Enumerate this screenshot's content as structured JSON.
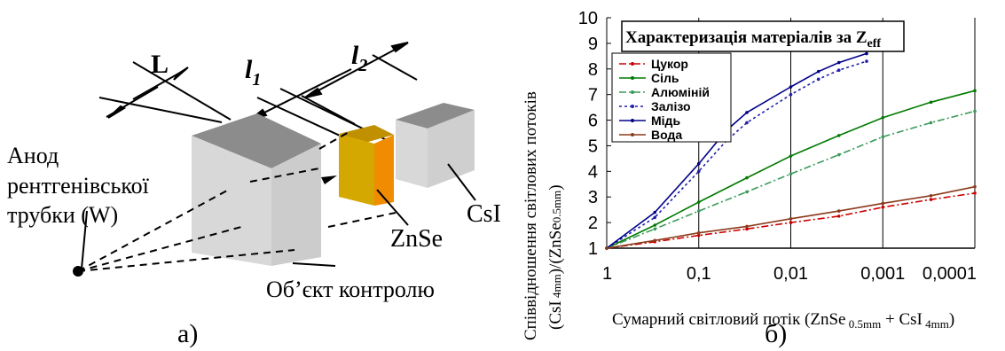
{
  "panel_a": {
    "label": "а)",
    "dim_L": "L",
    "dim_l1": "l",
    "dim_l1_sub": "1",
    "dim_l2": "l",
    "dim_l2_sub": "2",
    "anode_line1": "Анод",
    "anode_line2": "рентгенівської",
    "anode_line3": "трубки (W)",
    "object_label": "Об’єкт контролю",
    "znse_label": "ZnSe",
    "csi_label": "CsI",
    "colors": {
      "object_front": "#d8d8d8",
      "object_top": "#8c8c8c",
      "znse_front": "#d4a800",
      "znse_side": "#f08c00",
      "csi_front": "#d8d8d8",
      "csi_top": "#8c8c8c"
    }
  },
  "panel_b": {
    "label": "б)",
    "y_label_line1": "Співвідношення світлових потоків",
    "y_label_line2_a": "(CsI",
    "y_label_line2_sub1": " 4mm",
    "y_label_line2_b": ")/(ZnSe",
    "y_label_line2_sub2": "0.5mm",
    "y_label_line2_c": ")",
    "x_label_a": "Сумарний світловий потік (ZnSe",
    "x_label_sub1": " 0.5mm",
    "x_label_b": " + CsI",
    "x_label_sub2": " 4mm",
    "x_label_c": ")",
    "legend_title_a": "Характеризація  матеріалів за Z",
    "legend_title_sub": "eff"
  },
  "chart_data": {
    "type": "line",
    "title": "Характеризація  матеріалів за Zeff",
    "xlabel": "Сумарний світловий потік (ZnSe 0.5mm + CsI 4mm)",
    "ylabel": "Співвідношення світлових потоків (CsI 4mm)/(ZnSe0.5mm)",
    "x_scale": "log-reversed",
    "xlim": [
      1,
      0.0001
    ],
    "ylim": [
      1,
      10
    ],
    "x_ticks": [
      "1",
      "0,1",
      "0,01",
      "0,001",
      "0,0001"
    ],
    "y_ticks": [
      "1",
      "2",
      "3",
      "4",
      "5",
      "6",
      "7",
      "8",
      "9",
      "10"
    ],
    "legend_placement": "top-left",
    "grid": "vertical",
    "series": [
      {
        "name": "Цукор",
        "color": "#cc0000",
        "dash": "8,3,2,3",
        "x": [
          1,
          0.3,
          0.1,
          0.03,
          0.01,
          0.003,
          0.001,
          0.0003,
          0.0001
        ],
        "y": [
          1.0,
          1.25,
          1.5,
          1.75,
          2.0,
          2.25,
          2.6,
          2.9,
          3.15
        ]
      },
      {
        "name": "Сіль",
        "color": "#007a00",
        "dash": "",
        "x": [
          1,
          0.3,
          0.1,
          0.03,
          0.01,
          0.003,
          0.001,
          0.0003,
          0.0001
        ],
        "y": [
          1.0,
          1.9,
          2.8,
          3.75,
          4.6,
          5.4,
          6.1,
          6.7,
          7.15
        ]
      },
      {
        "name": "Алюміній",
        "color": "#3a9a5a",
        "dash": "8,3,2,3",
        "x": [
          1,
          0.3,
          0.1,
          0.03,
          0.01,
          0.003,
          0.001,
          0.0003,
          0.0001
        ],
        "y": [
          1.0,
          1.75,
          2.45,
          3.2,
          3.9,
          4.65,
          5.35,
          5.9,
          6.35
        ]
      },
      {
        "name": "Залізо",
        "color": "#2020aa",
        "dash": "3,3",
        "x": [
          1,
          0.3,
          0.1,
          0.05,
          0.03,
          0.01,
          0.005,
          0.003,
          0.0015
        ],
        "y": [
          1.0,
          2.2,
          4.0,
          5.2,
          5.9,
          7.0,
          7.6,
          7.95,
          8.3
        ]
      },
      {
        "name": "Мідь",
        "color": "#000088",
        "dash": "",
        "x": [
          1,
          0.3,
          0.1,
          0.05,
          0.03,
          0.01,
          0.005,
          0.003,
          0.0015
        ],
        "y": [
          1.0,
          2.4,
          4.3,
          5.6,
          6.3,
          7.3,
          7.9,
          8.25,
          8.6
        ]
      },
      {
        "name": "Вода",
        "color": "#8b3a1a",
        "dash": "",
        "x": [
          1,
          0.3,
          0.1,
          0.03,
          0.01,
          0.003,
          0.001,
          0.0003,
          0.0001
        ],
        "y": [
          1.0,
          1.3,
          1.6,
          1.85,
          2.15,
          2.45,
          2.75,
          3.05,
          3.4
        ]
      }
    ]
  }
}
